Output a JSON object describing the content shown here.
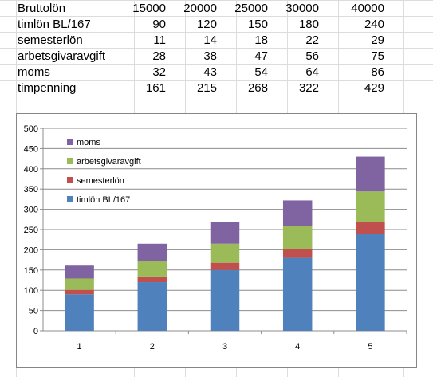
{
  "table": {
    "header": {
      "label": "Bruttolön",
      "values": [
        "15000",
        "20000",
        "25000",
        "30000",
        "40000"
      ]
    },
    "rows": [
      {
        "label": "timlön BL/167",
        "values": [
          "90",
          "120",
          "150",
          "180",
          "240"
        ]
      },
      {
        "label": "semesterlön",
        "values": [
          "11",
          "14",
          "18",
          "22",
          "29"
        ]
      },
      {
        "label": "arbetsgivaravgift",
        "values": [
          "28",
          "38",
          "47",
          "56",
          "75"
        ]
      },
      {
        "label": "moms",
        "values": [
          "32",
          "43",
          "54",
          "64",
          "86"
        ]
      },
      {
        "label": "timpenning",
        "values": [
          "161",
          "215",
          "268",
          "322",
          "429"
        ]
      }
    ]
  },
  "chart_data": {
    "type": "bar",
    "stacked": true,
    "title": "",
    "xlabel": "",
    "ylabel": "",
    "categories": [
      "1",
      "2",
      "3",
      "4",
      "5"
    ],
    "ylim": [
      0,
      500
    ],
    "yticks": [
      0,
      50,
      100,
      150,
      200,
      250,
      300,
      350,
      400,
      450,
      500
    ],
    "grid": true,
    "legend_position": "top-left",
    "series": [
      {
        "name": "timlön BL/167",
        "values": [
          90,
          120,
          150,
          180,
          240
        ],
        "color": "#4f81bd"
      },
      {
        "name": "semesterlön",
        "values": [
          11,
          14,
          18,
          22,
          29
        ],
        "color": "#c0504d"
      },
      {
        "name": "arbetsgivaravgift",
        "values": [
          28,
          38,
          47,
          56,
          75
        ],
        "color": "#9bbb59"
      },
      {
        "name": "moms",
        "values": [
          32,
          43,
          54,
          64,
          86
        ],
        "color": "#8064a2"
      }
    ]
  }
}
